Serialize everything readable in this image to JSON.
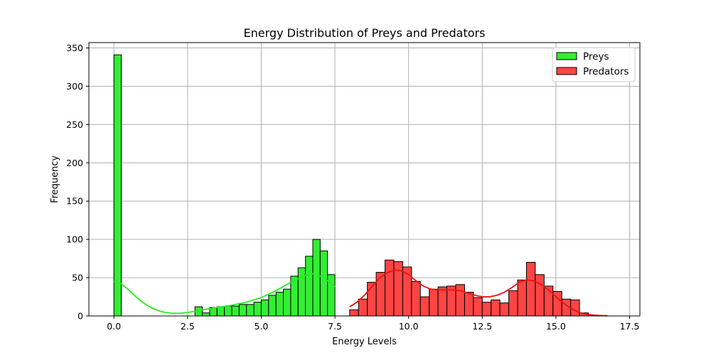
{
  "chart_data": {
    "type": "histogram",
    "title": "Energy Distribution of Preys and Predators",
    "xlabel": "Energy Levels",
    "ylabel": "Frequency",
    "xlim": [
      -0.85,
      17.85
    ],
    "ylim": [
      0,
      357
    ],
    "xticks": [
      0.0,
      2.5,
      5.0,
      7.5,
      10.0,
      12.5,
      15.0,
      17.5
    ],
    "xtick_labels": [
      "0.0",
      "2.5",
      "5.0",
      "7.5",
      "10.0",
      "12.5",
      "15.0",
      "17.5"
    ],
    "yticks": [
      0,
      50,
      100,
      150,
      200,
      250,
      300,
      350
    ],
    "ytick_labels": [
      "0",
      "50",
      "100",
      "150",
      "200",
      "250",
      "300",
      "350"
    ],
    "grid": true,
    "legend_position": "top-right",
    "series": [
      {
        "name": "Preys",
        "color": "#33ee33",
        "kde_color": "#22ee22",
        "bins": [
          {
            "x0": 0.0,
            "x1": 0.25,
            "count": 341
          },
          {
            "x0": 2.75,
            "x1": 3.0,
            "count": 12
          },
          {
            "x0": 3.0,
            "x1": 3.25,
            "count": 4
          },
          {
            "x0": 3.25,
            "x1": 3.5,
            "count": 11
          },
          {
            "x0": 3.5,
            "x1": 3.75,
            "count": 12
          },
          {
            "x0": 3.75,
            "x1": 4.0,
            "count": 13
          },
          {
            "x0": 4.0,
            "x1": 4.25,
            "count": 13
          },
          {
            "x0": 4.25,
            "x1": 4.5,
            "count": 15
          },
          {
            "x0": 4.5,
            "x1": 4.75,
            "count": 15
          },
          {
            "x0": 4.75,
            "x1": 5.0,
            "count": 18
          },
          {
            "x0": 5.0,
            "x1": 5.25,
            "count": 21
          },
          {
            "x0": 5.25,
            "x1": 5.5,
            "count": 27
          },
          {
            "x0": 5.5,
            "x1": 5.75,
            "count": 31
          },
          {
            "x0": 5.75,
            "x1": 6.0,
            "count": 35
          },
          {
            "x0": 6.0,
            "x1": 6.25,
            "count": 52
          },
          {
            "x0": 6.25,
            "x1": 6.5,
            "count": 63
          },
          {
            "x0": 6.5,
            "x1": 6.75,
            "count": 78
          },
          {
            "x0": 6.75,
            "x1": 7.0,
            "count": 100
          },
          {
            "x0": 7.0,
            "x1": 7.25,
            "count": 85
          },
          {
            "x0": 7.25,
            "x1": 7.5,
            "count": 54
          }
        ],
        "kde": {
          "x": [
            0.0,
            0.25,
            0.5,
            0.75,
            1.0,
            1.25,
            1.5,
            1.75,
            2.0,
            2.25,
            2.5,
            2.75,
            3.0,
            3.5,
            4.0,
            4.5,
            5.0,
            5.5,
            6.0,
            6.5,
            6.75,
            7.0,
            7.25,
            7.5
          ],
          "y": [
            45,
            42,
            34,
            25,
            17,
            11,
            7,
            4.5,
            3.5,
            3.5,
            4.5,
            6,
            8,
            11,
            14,
            18,
            24,
            33,
            44,
            53,
            55,
            52,
            46,
            38
          ]
        }
      },
      {
        "name": "Predators",
        "color": "#ff4444",
        "kde_color": "#ee1111",
        "bins": [
          {
            "x0": 8.0,
            "x1": 8.3,
            "count": 8
          },
          {
            "x0": 8.3,
            "x1": 8.6,
            "count": 22
          },
          {
            "x0": 8.6,
            "x1": 8.9,
            "count": 44
          },
          {
            "x0": 8.9,
            "x1": 9.2,
            "count": 57
          },
          {
            "x0": 9.2,
            "x1": 9.5,
            "count": 73
          },
          {
            "x0": 9.5,
            "x1": 9.8,
            "count": 71
          },
          {
            "x0": 9.8,
            "x1": 10.1,
            "count": 64
          },
          {
            "x0": 10.1,
            "x1": 10.4,
            "count": 45
          },
          {
            "x0": 10.4,
            "x1": 10.7,
            "count": 25
          },
          {
            "x0": 10.7,
            "x1": 11.0,
            "count": 35
          },
          {
            "x0": 11.0,
            "x1": 11.3,
            "count": 38
          },
          {
            "x0": 11.3,
            "x1": 11.6,
            "count": 39
          },
          {
            "x0": 11.6,
            "x1": 11.9,
            "count": 41
          },
          {
            "x0": 11.9,
            "x1": 12.2,
            "count": 31
          },
          {
            "x0": 12.2,
            "x1": 12.5,
            "count": 24
          },
          {
            "x0": 12.5,
            "x1": 12.8,
            "count": 18
          },
          {
            "x0": 12.8,
            "x1": 13.1,
            "count": 21
          },
          {
            "x0": 13.1,
            "x1": 13.4,
            "count": 17
          },
          {
            "x0": 13.4,
            "x1": 13.7,
            "count": 33
          },
          {
            "x0": 13.7,
            "x1": 14.0,
            "count": 47
          },
          {
            "x0": 14.0,
            "x1": 14.3,
            "count": 70
          },
          {
            "x0": 14.3,
            "x1": 14.6,
            "count": 54
          },
          {
            "x0": 14.6,
            "x1": 14.9,
            "count": 39
          },
          {
            "x0": 14.9,
            "x1": 15.2,
            "count": 32
          },
          {
            "x0": 15.2,
            "x1": 15.5,
            "count": 22
          },
          {
            "x0": 15.5,
            "x1": 15.8,
            "count": 21
          },
          {
            "x0": 15.8,
            "x1": 16.1,
            "count": 4
          },
          {
            "x0": 16.1,
            "x1": 16.4,
            "count": 1
          }
        ],
        "kde": {
          "x": [
            8.0,
            8.25,
            8.5,
            8.75,
            9.0,
            9.25,
            9.5,
            9.75,
            10.0,
            10.25,
            10.5,
            10.75,
            11.0,
            11.25,
            11.5,
            11.75,
            12.0,
            12.25,
            12.5,
            12.75,
            13.0,
            13.25,
            13.5,
            13.75,
            14.0,
            14.25,
            14.5,
            14.75,
            15.0,
            15.25,
            15.5,
            15.75,
            16.0,
            16.25,
            16.5,
            16.75
          ],
          "y": [
            12,
            18,
            27,
            38,
            49,
            56,
            60,
            59,
            54,
            46,
            39,
            35,
            34,
            34,
            34,
            33,
            30,
            27,
            25,
            25,
            27,
            31,
            37,
            44,
            47,
            46,
            41,
            34,
            25,
            17,
            10,
            5,
            2.5,
            1.3,
            0.6,
            0.3
          ]
        }
      }
    ]
  }
}
